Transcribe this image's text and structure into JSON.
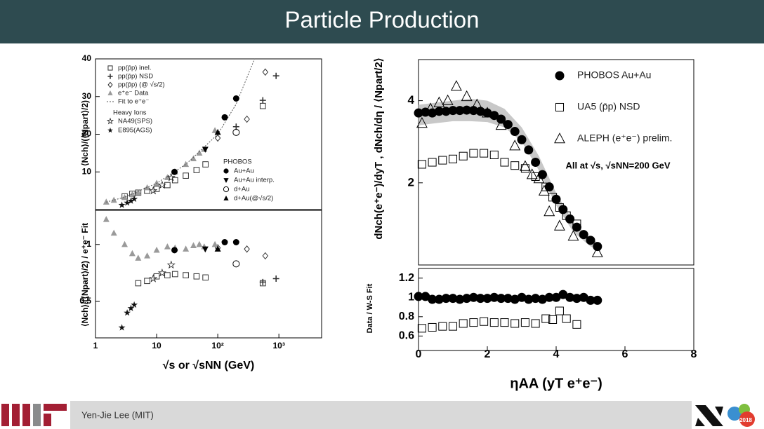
{
  "header": {
    "title": "Particle Production"
  },
  "footer": {
    "author": "Yen-Jie Lee (MIT)",
    "badge": "2018"
  },
  "chart_data": [
    {
      "type": "scatter",
      "xlog": true,
      "xlim": [
        1,
        5000
      ],
      "ylim": [
        0,
        40
      ],
      "yticks": [
        10,
        20,
        30,
        40
      ],
      "ylabel": "⟨Nch⟩/(⟨Npart⟩/2)",
      "legend_headers": [
        "Heavy Ions",
        "PHOBOS"
      ],
      "series": [
        {
          "name": "pp(p̄p) inel.",
          "marker": "square-open",
          "color": "#333333",
          "x": [
            3,
            4,
            5,
            7,
            10,
            15,
            20,
            30,
            45,
            63,
            546
          ],
          "values": [
            3.5,
            4.2,
            4.5,
            5,
            5.5,
            6.5,
            7.8,
            9,
            10.5,
            12,
            27.5
          ]
        },
        {
          "name": "pp(p̄p) NSD",
          "marker": "cross",
          "color": "#333333",
          "x": [
            200,
            546,
            900
          ],
          "values": [
            22,
            29,
            35.5
          ]
        },
        {
          "name": "pp(p̄p) (@ √s/2)",
          "marker": "diamond-open",
          "color": "#333333",
          "x": [
            100,
            300,
            600
          ],
          "values": [
            19,
            24,
            36.5
          ]
        },
        {
          "name": "e⁺e⁻ Data",
          "marker": "triangle",
          "color": "#9a9a9a",
          "x": [
            1.5,
            2,
            3,
            4,
            5,
            7,
            10,
            15,
            20,
            30,
            40,
            50,
            60,
            90
          ],
          "values": [
            2,
            2.5,
            3.2,
            4,
            4.5,
            5.8,
            7,
            8.5,
            10,
            12,
            13.5,
            15,
            16,
            21
          ]
        },
        {
          "name": "Fit to e⁺e⁻",
          "marker": "line",
          "color": "#555555",
          "x": [
            1.5,
            3,
            10,
            30,
            100,
            200,
            400
          ],
          "values": [
            2,
            3.3,
            7,
            12,
            20,
            28,
            40
          ]
        },
        {
          "name": "NA49(SPS)",
          "marker": "star-open",
          "color": "#222222",
          "x": [
            8.8,
            12.3,
            17.3
          ],
          "values": [
            5,
            6.5,
            8.5
          ]
        },
        {
          "name": "E895(AGS)",
          "marker": "star",
          "color": "#111111",
          "x": [
            2.7,
            3.3,
            3.8,
            4.3
          ],
          "values": [
            1.2,
            1.8,
            2.3,
            2.8
          ]
        },
        {
          "name": "Au+Au",
          "marker": "circle",
          "color": "#000000",
          "x": [
            19.6,
            130,
            200
          ],
          "values": [
            10,
            24.5,
            29.5
          ]
        },
        {
          "name": "Au+Au interp.",
          "marker": "triangle-down",
          "color": "#000000",
          "x": [
            62.4
          ],
          "values": [
            16
          ]
        },
        {
          "name": "d+Au",
          "marker": "open-circle",
          "color": "#000000",
          "x": [
            200
          ],
          "values": [
            20.5
          ]
        },
        {
          "name": "d+Au(@√s/2)",
          "marker": "triangle",
          "color": "#000000",
          "x": [
            100
          ],
          "values": [
            20.5
          ]
        }
      ]
    },
    {
      "type": "scatter",
      "xlog": true,
      "xlim": [
        1,
        5000
      ],
      "ylim": [
        0.18,
        1.3
      ],
      "yticks": [
        0.5,
        1
      ],
      "xticks": [
        1,
        10,
        {
          "value": 100,
          "label": "10²"
        },
        {
          "value": 1000,
          "label": "10³"
        }
      ],
      "xlabel": "√s or √sNN (GeV)",
      "ylabel": "⟨Nch⟩/(⟨Npart⟩/2) / e⁺e⁻ Fit",
      "series": [
        {
          "marker": "square-open",
          "color": "#333333",
          "x": [
            5,
            7,
            10,
            15,
            20,
            30,
            45,
            63,
            546
          ],
          "values": [
            0.66,
            0.68,
            0.72,
            0.73,
            0.74,
            0.73,
            0.72,
            0.71,
            0.66
          ]
        },
        {
          "marker": "cross",
          "color": "#333333",
          "x": [
            546,
            900
          ],
          "values": [
            0.67,
            0.7
          ]
        },
        {
          "marker": "diamond-open",
          "color": "#333333",
          "x": [
            100,
            300,
            600
          ],
          "values": [
            0.97,
            0.96,
            0.9
          ]
        },
        {
          "marker": "triangle",
          "color": "#9a9a9a",
          "x": [
            1.5,
            2,
            3,
            4,
            5,
            7,
            10,
            15,
            20,
            30,
            40,
            50,
            60,
            90
          ],
          "values": [
            1.22,
            1.1,
            1.0,
            0.92,
            0.88,
            0.9,
            0.95,
            0.98,
            0.97,
            0.96,
            0.99,
            1.0,
            0.98,
            1.0
          ]
        },
        {
          "marker": "star-open",
          "color": "#222222",
          "x": [
            8.8,
            12.3,
            17.3
          ],
          "values": [
            0.7,
            0.75,
            0.82
          ]
        },
        {
          "marker": "star",
          "color": "#111111",
          "x": [
            2.7,
            3.3,
            3.8,
            4.3
          ],
          "values": [
            0.27,
            0.4,
            0.44,
            0.47
          ]
        },
        {
          "marker": "circle",
          "color": "#000000",
          "x": [
            19.6,
            130,
            200
          ],
          "values": [
            0.95,
            1.02,
            1.02
          ]
        },
        {
          "marker": "triangle-down",
          "color": "#000000",
          "x": [
            62.4
          ],
          "values": [
            0.96
          ]
        },
        {
          "marker": "open-circle",
          "color": "#000000",
          "x": [
            200
          ],
          "values": [
            0.83
          ]
        },
        {
          "marker": "triangle",
          "color": "#000000",
          "x": [
            100
          ],
          "values": [
            0.96
          ]
        }
      ]
    },
    {
      "type": "scatter",
      "xlim": [
        0,
        8
      ],
      "ylim": [
        0,
        5
      ],
      "yticks": [
        2,
        4
      ],
      "ylabel": "dNch(e⁺e⁻)/dyT ,  dNch/dη / ⟨Npart/2⟩",
      "annotation": "All at √s, √sNN=200 GeV",
      "band": {
        "color": "#c8c8c8",
        "x": [
          0,
          0.5,
          1,
          1.5,
          2,
          2.5,
          3,
          3.5,
          4,
          4.5,
          5,
          5.3
        ],
        "lower": [
          3.4,
          3.45,
          3.5,
          3.5,
          3.48,
          3.35,
          3.0,
          2.3,
          1.45,
          0.8,
          0.45,
          0.35
        ],
        "upper": [
          3.9,
          3.95,
          4.0,
          4.05,
          4.0,
          3.8,
          3.35,
          2.65,
          1.75,
          1.05,
          0.65,
          0.5
        ]
      },
      "series": [
        {
          "name": "PHOBOS Au+Au",
          "marker": "circle",
          "color": "#000000",
          "x": [
            0,
            0.2,
            0.4,
            0.6,
            0.8,
            1.0,
            1.2,
            1.4,
            1.6,
            1.8,
            2.0,
            2.2,
            2.4,
            2.6,
            2.8,
            3.0,
            3.2,
            3.4,
            3.6,
            3.8,
            4.0,
            4.2,
            4.4,
            4.6,
            4.8,
            5.0,
            5.2
          ],
          "values": [
            3.7,
            3.72,
            3.7,
            3.74,
            3.74,
            3.76,
            3.76,
            3.77,
            3.76,
            3.74,
            3.7,
            3.64,
            3.55,
            3.42,
            3.25,
            3.05,
            2.8,
            2.5,
            2.2,
            1.9,
            1.6,
            1.35,
            1.12,
            0.92,
            0.74,
            0.6,
            0.45
          ]
        },
        {
          "name": "UA5 (p̄p) NSD",
          "marker": "square-open",
          "color": "#000000",
          "x": [
            0.1,
            0.4,
            0.7,
            1.0,
            1.3,
            1.6,
            1.9,
            2.2,
            2.5,
            2.8,
            3.1,
            3.4,
            3.7,
            3.9,
            4.1,
            4.3,
            4.6
          ],
          "values": [
            2.45,
            2.5,
            2.55,
            2.58,
            2.65,
            2.72,
            2.72,
            2.68,
            2.5,
            2.42,
            2.35,
            2.15,
            1.9,
            1.65,
            1.4,
            1.2,
            1.0
          ]
        },
        {
          "name": "ALEPH (e⁺e⁻) prelim.",
          "marker": "triangle-open",
          "color": "#000000",
          "x": [
            0.1,
            0.35,
            0.6,
            0.85,
            1.1,
            1.4,
            1.7,
            2.0,
            2.4,
            2.8,
            3.1,
            3.3,
            3.5,
            3.65,
            3.8,
            4.1,
            4.5,
            5.2
          ],
          "values": [
            3.45,
            3.8,
            3.95,
            4.0,
            4.35,
            4.1,
            3.9,
            3.7,
            3.4,
            2.9,
            2.4,
            2.2,
            2.1,
            1.8,
            1.3,
            0.95,
            0.7,
            0.3
          ]
        }
      ]
    },
    {
      "type": "scatter",
      "xlim": [
        0,
        8
      ],
      "ylim": [
        0.45,
        1.3
      ],
      "yticks": [
        0.6,
        0.8,
        1,
        1.2
      ],
      "xticks": [
        0,
        2,
        4,
        6,
        8
      ],
      "xlabel": "ηAA (yT e⁺e⁻)",
      "ylabel": "Data / W-S Fit",
      "series": [
        {
          "marker": "circle",
          "color": "#000000",
          "x": [
            0,
            0.2,
            0.4,
            0.6,
            0.8,
            1.0,
            1.2,
            1.4,
            1.6,
            1.8,
            2.0,
            2.2,
            2.4,
            2.6,
            2.8,
            3.0,
            3.2,
            3.4,
            3.6,
            3.8,
            4.0,
            4.2,
            4.4,
            4.6,
            4.8,
            5.0,
            5.2
          ],
          "values": [
            1.01,
            1.01,
            0.98,
            0.98,
            0.99,
            0.99,
            0.98,
            0.99,
            1.0,
            0.99,
            0.99,
            1.0,
            0.99,
            0.99,
            0.98,
            1.0,
            0.98,
            0.99,
            0.98,
            1.0,
            1.0,
            1.03,
            1.0,
            0.99,
            1.0,
            0.97,
            0.97
          ]
        },
        {
          "marker": "square-open",
          "color": "#000000",
          "x": [
            0.1,
            0.4,
            0.7,
            1.0,
            1.3,
            1.6,
            1.9,
            2.2,
            2.5,
            2.8,
            3.1,
            3.4,
            3.7,
            3.9,
            4.1,
            4.3,
            4.6
          ],
          "values": [
            0.68,
            0.69,
            0.7,
            0.7,
            0.73,
            0.74,
            0.75,
            0.74,
            0.74,
            0.73,
            0.74,
            0.73,
            0.78,
            0.77,
            0.86,
            0.78,
            0.72
          ]
        }
      ]
    }
  ]
}
